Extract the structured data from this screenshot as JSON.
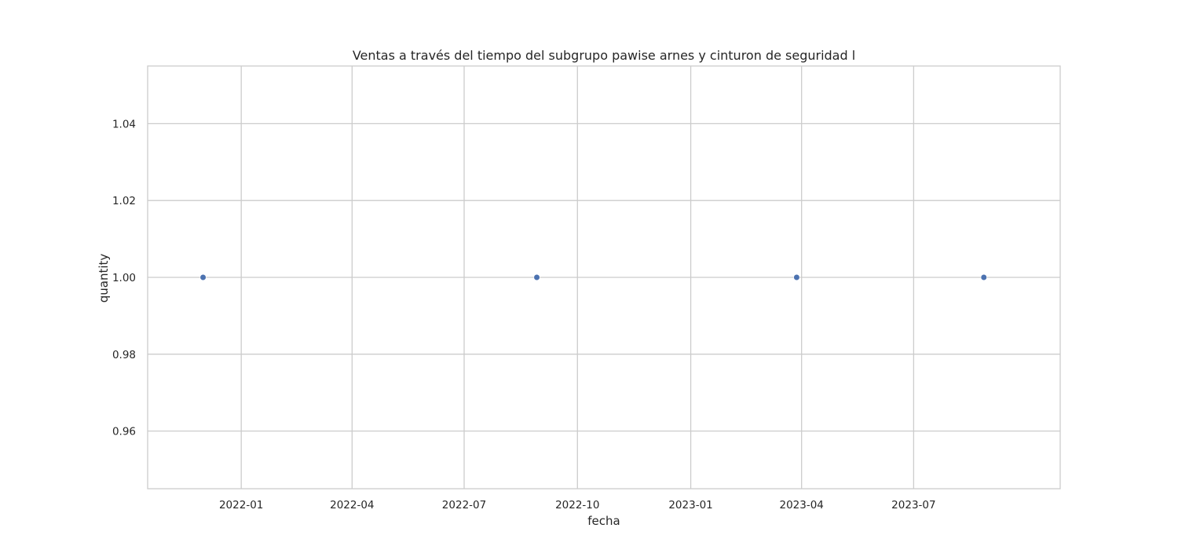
{
  "chart_data": {
    "type": "scatter",
    "title": "Ventas a través del tiempo del subgrupo pawise arnes y cinturon de seguridad l",
    "xlabel": "fecha",
    "ylabel": "quantity",
    "x_scale": "date",
    "xlim": [
      "2021-10-17",
      "2023-10-28"
    ],
    "ylim": [
      0.945,
      1.055
    ],
    "x_ticks": [
      {
        "value": "2022-01-01",
        "label": "2022-01"
      },
      {
        "value": "2022-04-01",
        "label": "2022-04"
      },
      {
        "value": "2022-07-01",
        "label": "2022-07"
      },
      {
        "value": "2022-10-01",
        "label": "2022-10"
      },
      {
        "value": "2023-01-01",
        "label": "2023-01"
      },
      {
        "value": "2023-04-01",
        "label": "2023-04"
      },
      {
        "value": "2023-07-01",
        "label": "2023-07"
      }
    ],
    "y_ticks": [
      {
        "value": 0.96,
        "label": "0.96"
      },
      {
        "value": 0.98,
        "label": "0.98"
      },
      {
        "value": 1.0,
        "label": "1.00"
      },
      {
        "value": 1.02,
        "label": "1.02"
      },
      {
        "value": 1.04,
        "label": "1.04"
      }
    ],
    "points": [
      {
        "x": "2021-12-01",
        "y": 1.0
      },
      {
        "x": "2022-08-29",
        "y": 1.0
      },
      {
        "x": "2023-03-28",
        "y": 1.0
      },
      {
        "x": "2023-08-27",
        "y": 1.0
      }
    ],
    "grid": true,
    "colors": {
      "point": "#4c72b0",
      "grid": "#cccccc",
      "spine": "#cccccc",
      "text": "#262626"
    }
  }
}
